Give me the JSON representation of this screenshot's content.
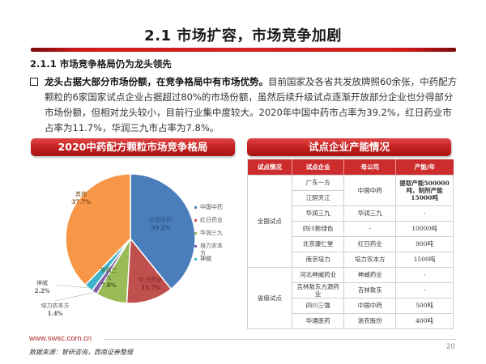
{
  "header": {
    "title": "2.1 市场扩容，市场竞争加剧",
    "subtitle": "2.1.1 市场竞争格局仍为龙头领先"
  },
  "paragraph": {
    "lead": "龙头占据大部分市场份额，在竞争格局中有市场优势。",
    "body": "目前国家及各省共发放牌照60余张，中药配方颗粒的6家国家试点企业占据超过80%的市场份额，虽然后续升级试点逐渐开放部分企业也分得部分市场份额，但相对龙头较小，目前行业集中度较大。2020年中国中药市占率为39.2%，红日药业市占率为11.7%，华润三九市占率为7.8%。"
  },
  "left_panel": {
    "title": "2020中药配方颗粒市场竞争格局"
  },
  "right_panel": {
    "title": "试点企业产能情况"
  },
  "chart_data": {
    "type": "pie",
    "title": "2020中药配方颗粒市场竞争格局",
    "categories": [
      "中国中药",
      "红日药业",
      "华润三九",
      "培力农本方",
      "神威",
      "其他"
    ],
    "values": [
      39.2,
      11.7,
      7.8,
      1.4,
      2.2,
      37.7
    ],
    "colors": [
      "#4a7ebb",
      "#c0504d",
      "#9bbb59",
      "#7f5fa6",
      "#3fb3c9",
      "#f79646"
    ],
    "labels": [
      {
        "name": "中国中药",
        "pct": "39.2%"
      },
      {
        "name": "红日药业",
        "pct": "11.7%"
      },
      {
        "name": "华润三\n九",
        "pct": "7.8%"
      },
      {
        "name": "培力农本方",
        "pct": "1.4%"
      },
      {
        "name": "神威",
        "pct": "2.2%"
      },
      {
        "name": "其他",
        "pct": "37.7%"
      }
    ],
    "legend": [
      "中国中药",
      "红日药业",
      "华润三九",
      "培力农本方",
      "神威"
    ],
    "legend_position": "right"
  },
  "table": {
    "headers": [
      "试点情况",
      "试点企业",
      "母公司",
      "产能/年"
    ],
    "groups": [
      {
        "name": "全国试点",
        "rows": [
          {
            "company": "广东一方",
            "parent": "中国中药",
            "capacity": "提取产能500000吨，制剂产能15000吨"
          },
          {
            "company": "江阴天江",
            "parent": "",
            "capacity": ""
          },
          {
            "company": "华润三九",
            "parent": "华润三九",
            "capacity": "-"
          },
          {
            "company": "四川新绿色",
            "parent": "-",
            "capacity": "10000吨"
          },
          {
            "company": "北京康仁堂",
            "parent": "红日药业",
            "capacity": "900吨"
          },
          {
            "company": "南京培力",
            "parent": "培力农本方",
            "capacity": "1500吨"
          }
        ]
      },
      {
        "name": "省级试点",
        "rows": [
          {
            "company": "河北神威药业",
            "parent": "神威药业",
            "capacity": "-"
          },
          {
            "company": "吉林敖东方源药业",
            "parent": "吉林敖东",
            "capacity": "-"
          },
          {
            "company": "四川三强",
            "parent": "中国中药",
            "capacity": "500吨"
          },
          {
            "company": "华通医药",
            "parent": "浙农股份",
            "capacity": "400吨"
          }
        ]
      }
    ]
  },
  "footer": {
    "url": "www.swsc.com.cn",
    "source": "数据来源：智研咨询，西南证券整理",
    "page": "20"
  }
}
